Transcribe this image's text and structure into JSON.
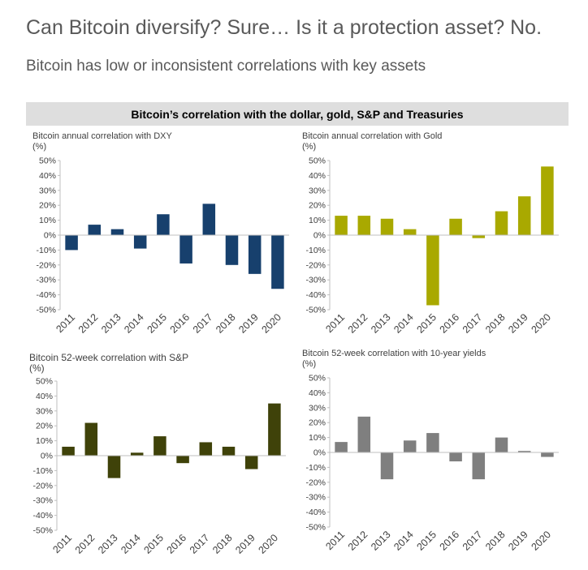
{
  "header": {
    "title": "Can Bitcoin diversify? Sure… Is it a protection asset? No.",
    "subtitle": "Bitcoin has low or inconsistent correlations with key assets",
    "banner": "Bitcoin’s correlation with the dollar, gold, S&P and Treasuries"
  },
  "chart_data": [
    {
      "type": "bar",
      "title": "Bitcoin annual correlation with DXY",
      "ylabel": "(%)",
      "color": "#17406d",
      "categories": [
        "2011",
        "2012",
        "2013",
        "2014",
        "2015",
        "2016",
        "2017",
        "2018",
        "2019",
        "2020"
      ],
      "values": [
        -10,
        7,
        4,
        -9,
        14,
        -19,
        21,
        -20,
        -26,
        -36
      ],
      "ylim": [
        -50,
        50
      ],
      "yticks": [
        "50%",
        "40%",
        "30%",
        "20%",
        "10%",
        "0%",
        "-10%",
        "-20%",
        "-30%",
        "-40%",
        "-50%"
      ]
    },
    {
      "type": "bar",
      "title": "Bitcoin annual correlation with Gold",
      "ylabel": "(%)",
      "color": "#a9a900",
      "categories": [
        "2011",
        "2012",
        "2013",
        "2014",
        "2015",
        "2016",
        "2017",
        "2018",
        "2019",
        "2020"
      ],
      "values": [
        13,
        13,
        11,
        4,
        -47,
        11,
        -2,
        16,
        26,
        46
      ],
      "ylim": [
        -50,
        50
      ],
      "yticks": [
        "50%",
        "40%",
        "30%",
        "20%",
        "10%",
        "0%",
        "-10%",
        "-20%",
        "-30%",
        "-40%",
        "-50%"
      ]
    },
    {
      "type": "bar",
      "title": "Bitcoin 52-week correlation with S&P",
      "ylabel": "(%)",
      "color": "#3f4209",
      "categories": [
        "2011",
        "2012",
        "2013",
        "2014",
        "2015",
        "2016",
        "2017",
        "2018",
        "2019",
        "2020"
      ],
      "values": [
        6,
        22,
        -15,
        2,
        13,
        -5,
        9,
        6,
        -9,
        35
      ],
      "ylim": [
        -50,
        50
      ],
      "yticks": [
        "50%",
        "40%",
        "30%",
        "20%",
        "10%",
        "0%",
        "-10%",
        "-20%",
        "-30%",
        "-40%",
        "-50%"
      ]
    },
    {
      "type": "bar",
      "title": "Bitcoin 52-week correlation with 10-year yields",
      "ylabel": "(%)",
      "color": "#7f7f7f",
      "categories": [
        "2011",
        "2012",
        "2013",
        "2014",
        "2015",
        "2016",
        "2017",
        "2018",
        "2019",
        "2020"
      ],
      "values": [
        7,
        24,
        -18,
        8,
        13,
        -6,
        -18,
        10,
        1,
        -3
      ],
      "ylim": [
        -50,
        50
      ],
      "yticks": [
        "50%",
        "40%",
        "30%",
        "20%",
        "10%",
        "0%",
        "-10%",
        "-20%",
        "-30%",
        "-40%",
        "-50%"
      ]
    }
  ]
}
